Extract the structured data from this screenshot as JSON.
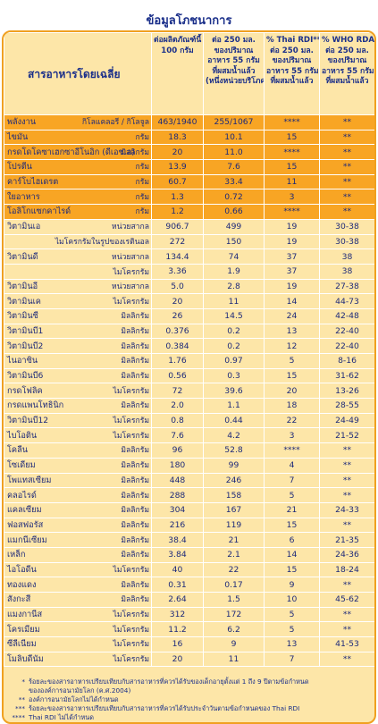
{
  "title": "ข้อมูลโภชนาการ",
  "header": {
    "main": "สารอาหารโดยเฉลี่ย",
    "col1": [
      "ต่อผลิตภัณฑ์นี้",
      "100 กรัม"
    ],
    "col2": [
      "ต่อ 250 มล.",
      "ของปริมาณ",
      "อาหาร 55 กรัม",
      "ที่ผสมน้ำแล้ว",
      "(หนึ่งหน่วยบริโภค)"
    ],
    "col3": [
      "% Thai RDI***",
      "ต่อ 250 มล.",
      "ของปริมาณ",
      "อาหาร 55 กรัม",
      "ที่ผสมน้ำแล้ว"
    ],
    "col4": [
      "% WHO RDA*",
      "ต่อ 250 มล.",
      "ของปริมาณ",
      "อาหาร 55 กรัม",
      "ที่ผสมน้ำแล้ว"
    ]
  },
  "rows": [
    {
      "name": "พลังงาน",
      "unit": "กิโลแคลอรี / กิโลจูล",
      "v1": "463/1940",
      "v2": "255/1067",
      "v3": "****",
      "v4": "**",
      "hl": true
    },
    {
      "name": "ไขมัน",
      "unit": "กรัม",
      "v1": "18.3",
      "v2": "10.1",
      "v3": "15",
      "v4": "**",
      "hl": true
    },
    {
      "name": "กรดโดโคซาเฮกซาอีโนอิก (ดีเอชเอ)",
      "unit": "มิลลิกรัม",
      "v1": "20",
      "v2": "11.0",
      "v3": "****",
      "v4": "**",
      "hl": true
    },
    {
      "name": "โปรตีน",
      "unit": "กรัม",
      "v1": "13.9",
      "v2": "7.6",
      "v3": "15",
      "v4": "**",
      "hl": true
    },
    {
      "name": "คาร์โบไฮเดรต",
      "unit": "กรัม",
      "v1": "60.7",
      "v2": "33.4",
      "v3": "11",
      "v4": "**",
      "hl": true
    },
    {
      "name": "ใยอาหาร",
      "unit": "กรัม",
      "v1": "1.3",
      "v2": "0.72",
      "v3": "3",
      "v4": "**",
      "hl": true
    },
    {
      "name": "โอลิโกแซกคาไรด์",
      "unit": "กรัม",
      "v1": "1.2",
      "v2": "0.66",
      "v3": "****",
      "v4": "**",
      "hl": true
    },
    {
      "name": "วิตามินเอ",
      "unit": "หน่วยสากล",
      "v1": "906.7",
      "v2": "499",
      "v3": "19",
      "v4": "30-38"
    },
    {
      "name": "",
      "unit": "ไมโครกรัมในรูปของเรตินอล",
      "v1": "272",
      "v2": "150",
      "v3": "19",
      "v4": "30-38"
    },
    {
      "name": "วิตามินดี",
      "unit": "หน่วยสากล",
      "v1": "134.4",
      "v2": "74",
      "v3": "37",
      "v4": "38"
    },
    {
      "name": "",
      "unit": "ไมโครกรัม",
      "v1": "3.36",
      "v2": "1.9",
      "v3": "37",
      "v4": "38"
    },
    {
      "name": "วิตามินอี",
      "unit": "หน่วยสากล",
      "v1": "5.0",
      "v2": "2.8",
      "v3": "19",
      "v4": "27-38"
    },
    {
      "name": "วิตามินเค",
      "unit": "ไมโครกรัม",
      "v1": "20",
      "v2": "11",
      "v3": "14",
      "v4": "44-73"
    },
    {
      "name": "วิตามินซี",
      "unit": "มิลลิกรัม",
      "v1": "26",
      "v2": "14.5",
      "v3": "24",
      "v4": "42-48"
    },
    {
      "name": "วิตามินบี1",
      "unit": "มิลลิกรัม",
      "v1": "0.376",
      "v2": "0.2",
      "v3": "13",
      "v4": "22-40"
    },
    {
      "name": "วิตามินบี2",
      "unit": "มิลลิกรัม",
      "v1": "0.384",
      "v2": "0.2",
      "v3": "12",
      "v4": "22-40"
    },
    {
      "name": "ไนอาซิน",
      "unit": "มิลลิกรัม",
      "v1": "1.76",
      "v2": "0.97",
      "v3": "5",
      "v4": "8-16"
    },
    {
      "name": "วิตามินบี6",
      "unit": "มิลลิกรัม",
      "v1": "0.56",
      "v2": "0.3",
      "v3": "15",
      "v4": "31-62"
    },
    {
      "name": "กรดโฟลิค",
      "unit": "ไมโครกรัม",
      "v1": "72",
      "v2": "39.6",
      "v3": "20",
      "v4": "13-26"
    },
    {
      "name": "กรดแพนโทธินิก",
      "unit": "มิลลิกรัม",
      "v1": "2.0",
      "v2": "1.1",
      "v3": "18",
      "v4": "28-55"
    },
    {
      "name": "วิตามินบี12",
      "unit": "ไมโครกรัม",
      "v1": "0.8",
      "v2": "0.44",
      "v3": "22",
      "v4": "24-49"
    },
    {
      "name": "ไบโอติน",
      "unit": "ไมโครกรัม",
      "v1": "7.6",
      "v2": "4.2",
      "v3": "3",
      "v4": "21-52"
    },
    {
      "name": "โคลีน",
      "unit": "มิลลิกรัม",
      "v1": "96",
      "v2": "52.8",
      "v3": "****",
      "v4": "**"
    },
    {
      "name": "โซเดียม",
      "unit": "มิลลิกรัม",
      "v1": "180",
      "v2": "99",
      "v3": "4",
      "v4": "**"
    },
    {
      "name": "โพแทสเซียม",
      "unit": "มิลลิกรัม",
      "v1": "448",
      "v2": "246",
      "v3": "7",
      "v4": "**"
    },
    {
      "name": "คลอไรด์",
      "unit": "มิลลิกรัม",
      "v1": "288",
      "v2": "158",
      "v3": "5",
      "v4": "**"
    },
    {
      "name": "แคลเซียม",
      "unit": "มิลลิกรัม",
      "v1": "304",
      "v2": "167",
      "v3": "21",
      "v4": "24-33"
    },
    {
      "name": "ฟอสฟอรัส",
      "unit": "มิลลิกรัม",
      "v1": "216",
      "v2": "119",
      "v3": "15",
      "v4": "**"
    },
    {
      "name": "แมกนีเซียม",
      "unit": "มิลลิกรัม",
      "v1": "38.4",
      "v2": "21",
      "v3": "6",
      "v4": "21-35"
    },
    {
      "name": "เหล็ก",
      "unit": "มิลลิกรัม",
      "v1": "3.84",
      "v2": "2.1",
      "v3": "14",
      "v4": "24-36"
    },
    {
      "name": "ไอโอดีน",
      "unit": "ไมโครกรัม",
      "v1": "40",
      "v2": "22",
      "v3": "15",
      "v4": "18-24"
    },
    {
      "name": "ทองแดง",
      "unit": "มิลลิกรัม",
      "v1": "0.31",
      "v2": "0.17",
      "v3": "9",
      "v4": "**"
    },
    {
      "name": "สังกะสี",
      "unit": "มิลลิกรัม",
      "v1": "2.64",
      "v2": "1.5",
      "v3": "10",
      "v4": "45-62"
    },
    {
      "name": "แมงกานีส",
      "unit": "ไมโครกรัม",
      "v1": "312",
      "v2": "172",
      "v3": "5",
      "v4": "**"
    },
    {
      "name": "โครเมียม",
      "unit": "ไมโครกรัม",
      "v1": "11.2",
      "v2": "6.2",
      "v3": "5",
      "v4": "**"
    },
    {
      "name": "ซีลีเนียม",
      "unit": "ไมโครกรัม",
      "v1": "16",
      "v2": "9",
      "v3": "13",
      "v4": "41-53"
    },
    {
      "name": "โมลิบดีนัม",
      "unit": "ไมโครกรัม",
      "v1": "20",
      "v2": "11",
      "v3": "7",
      "v4": "**"
    }
  ],
  "notes": [
    {
      "mark": "*",
      "text": "ร้อยละของสารอาหารเปรียบเทียบกับสารอาหารที่ควรได้รับของเด็กอายุตั้งแต่ 1 ถึง 9 ปีตามข้อกำหนด"
    },
    {
      "mark": "",
      "text": "ขององค์การอนามัยโลก (ค.ศ.2004)"
    },
    {
      "mark": "**",
      "text": "องค์การอนามัยโลกไม่ได้กำหนด"
    },
    {
      "mark": "***",
      "text": "ร้อยละของสารอาหารเปรียบเทียบกับสารอาหารที่ควรได้รับประจำวันตามข้อกำหนดของ Thai RDI"
    },
    {
      "mark": "****",
      "text": "Thai RDI ไม่ได้กำหนด"
    }
  ]
}
